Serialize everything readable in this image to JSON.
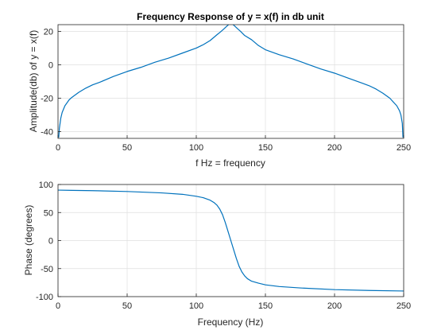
{
  "chart_data": [
    {
      "type": "line",
      "title": "Frequency Response of y = x(f) in db unit",
      "xlabel": "f Hz = frequency",
      "ylabel": "Amplitude(db) of y = x(f)",
      "xlim": [
        0,
        250
      ],
      "ylim": [
        -44,
        24
      ],
      "xticks": [
        0,
        50,
        100,
        150,
        200,
        250
      ],
      "yticks": [
        -40,
        -20,
        0,
        20
      ],
      "grid": true,
      "series": [
        {
          "color": "#0072bd",
          "x": [
            0.5,
            1,
            2,
            3,
            5,
            8,
            10,
            15,
            20,
            25,
            30,
            40,
            50,
            60,
            70,
            80,
            90,
            100,
            105,
            110,
            115,
            118,
            120,
            122,
            124,
            125,
            126,
            128,
            130,
            132,
            135,
            140,
            145,
            150,
            160,
            170,
            180,
            190,
            200,
            210,
            220,
            225,
            230,
            235,
            240,
            245,
            247,
            248,
            249,
            249.5
          ],
          "y": [
            -43.5,
            -38,
            -32,
            -28.5,
            -24.5,
            -21,
            -19.5,
            -16.5,
            -14,
            -12,
            -10.5,
            -7,
            -4,
            -1.5,
            1.5,
            4,
            7,
            10,
            12,
            14.5,
            18,
            20,
            21.5,
            23,
            24.5,
            25,
            24.5,
            23,
            21.5,
            20,
            17.5,
            15,
            11.5,
            9,
            6,
            3.5,
            0.5,
            -2.5,
            -5,
            -8,
            -11,
            -12.5,
            -14.5,
            -17,
            -20,
            -24.5,
            -27.5,
            -30,
            -35,
            -43.5
          ]
        }
      ]
    },
    {
      "type": "line",
      "title": "",
      "xlabel": "Frequency (Hz)",
      "ylabel": "Phase (degrees)",
      "xlim": [
        0,
        250
      ],
      "ylim": [
        -100,
        100
      ],
      "xticks": [
        0,
        50,
        100,
        150,
        200,
        250
      ],
      "yticks": [
        -100,
        -50,
        0,
        50,
        100
      ],
      "grid": true,
      "series": [
        {
          "color": "#0072bd",
          "x": [
            0,
            10,
            25,
            50,
            75,
            90,
            100,
            105,
            110,
            113,
            115,
            117,
            119,
            121,
            123,
            125,
            127,
            129,
            131,
            133,
            135,
            137,
            140,
            145,
            150,
            160,
            175,
            200,
            225,
            250
          ],
          "y": [
            90,
            89.5,
            89,
            87.5,
            85,
            82.5,
            79,
            76.5,
            72,
            67.5,
            63,
            56,
            46,
            32,
            16,
            0,
            -16,
            -32,
            -46,
            -56,
            -63,
            -68,
            -72.5,
            -76,
            -79,
            -82,
            -84.5,
            -87.5,
            -89,
            -90
          ]
        }
      ]
    }
  ]
}
